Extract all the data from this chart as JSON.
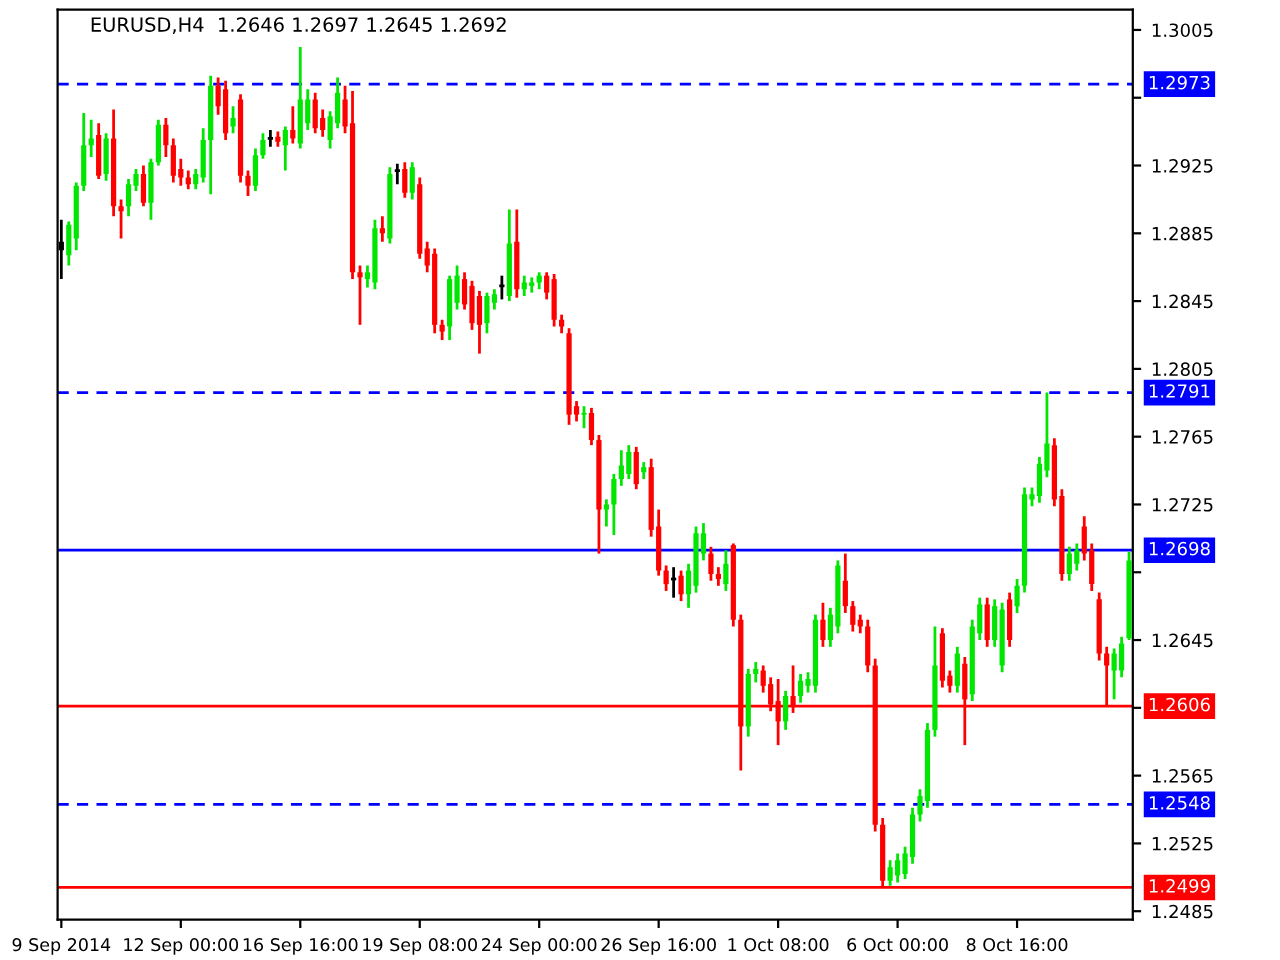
{
  "chart_data": {
    "type": "candlestick",
    "title": "EURUSD,H4  1.2646 1.2697 1.2645 1.2692",
    "categories": [
      "9 Sep 2014",
      null,
      null,
      null,
      null,
      null,
      null,
      null,
      null,
      null,
      null,
      null,
      null,
      null,
      null,
      null,
      "12 Sep 00:00",
      null,
      null,
      null,
      null,
      null,
      null,
      null,
      null,
      null,
      null,
      null,
      null,
      null,
      null,
      null,
      "16 Sep 16:00",
      null,
      null,
      null,
      null,
      null,
      null,
      null,
      null,
      null,
      null,
      null,
      null,
      null,
      null,
      null,
      "19 Sep 08:00",
      null,
      null,
      null,
      null,
      null,
      null,
      null,
      null,
      null,
      null,
      null,
      null,
      null,
      null,
      null,
      "24 Sep 00:00",
      null,
      null,
      null,
      null,
      null,
      null,
      null,
      null,
      null,
      null,
      null,
      null,
      null,
      null,
      null,
      "26 Sep 16:00",
      null,
      null,
      null,
      null,
      null,
      null,
      null,
      null,
      null,
      null,
      null,
      null,
      null,
      null,
      null,
      "1 Oct 08:00",
      null,
      null,
      null,
      null,
      null,
      null,
      null,
      null,
      null,
      null,
      null,
      null,
      null,
      null,
      null,
      "6 Oct 00:00",
      null,
      null,
      null,
      null,
      null,
      null,
      null,
      null,
      null,
      null,
      null,
      null,
      null,
      null,
      null,
      "8 Oct 16:00",
      null,
      null,
      null,
      null,
      null,
      null,
      null,
      null,
      null,
      null,
      null,
      null,
      null,
      null,
      null
    ],
    "ohlc": [
      [
        1.288,
        1.2893,
        1.2858,
        1.2875
      ],
      [
        1.2872,
        1.2892,
        1.2866,
        1.289
      ],
      [
        1.2882,
        1.2915,
        1.2875,
        1.2913
      ],
      [
        1.2913,
        1.2956,
        1.291,
        1.2937
      ],
      [
        1.2937,
        1.2952,
        1.293,
        1.2941
      ],
      [
        1.2943,
        1.295,
        1.2917,
        1.2919
      ],
      [
        1.292,
        1.2944,
        1.2916,
        1.2941
      ],
      [
        1.2941,
        1.2958,
        1.2895,
        1.2901
      ],
      [
        1.2901,
        1.2905,
        1.2882,
        1.2898
      ],
      [
        1.2901,
        1.2917,
        1.2895,
        1.2914
      ],
      [
        1.2913,
        1.2923,
        1.291,
        1.292
      ],
      [
        1.292,
        1.2925,
        1.2901,
        1.2903
      ],
      [
        1.2903,
        1.2929,
        1.2893,
        1.2927
      ],
      [
        1.2927,
        1.2952,
        1.2925,
        1.2949
      ],
      [
        1.2949,
        1.2953,
        1.293,
        1.2937
      ],
      [
        1.2937,
        1.2941,
        1.2915,
        1.2919
      ],
      [
        1.2923,
        1.2929,
        1.2913,
        1.2918
      ],
      [
        1.2918,
        1.2922,
        1.2911,
        1.2914
      ],
      [
        1.2914,
        1.2923,
        1.2911,
        1.292
      ],
      [
        1.2918,
        1.2947,
        1.2915,
        1.294
      ],
      [
        1.294,
        1.2978,
        1.2908,
        1.2972
      ],
      [
        1.2972,
        1.2977,
        1.2955,
        1.296
      ],
      [
        1.297,
        1.2975,
        1.294,
        1.2944
      ],
      [
        1.2948,
        1.296,
        1.2944,
        1.2953
      ],
      [
        1.2964,
        1.2967,
        1.2915,
        1.2919
      ],
      [
        1.2919,
        1.2922,
        1.2907,
        1.2913
      ],
      [
        1.2913,
        1.2935,
        1.291,
        1.2931
      ],
      [
        1.2931,
        1.2944,
        1.2929,
        1.294
      ],
      [
        1.2941,
        1.2946,
        1.2936,
        1.2941
      ],
      [
        1.2942,
        1.2945,
        1.2936,
        1.2939
      ],
      [
        1.2937,
        1.2948,
        1.2922,
        1.2946
      ],
      [
        1.2946,
        1.296,
        1.2938,
        1.2941
      ],
      [
        1.2938,
        1.2995,
        1.2935,
        1.2964
      ],
      [
        1.295,
        1.297,
        1.2946,
        1.2964
      ],
      [
        1.2964,
        1.2968,
        1.2944,
        1.2947
      ],
      [
        1.2953,
        1.2958,
        1.2942,
        1.2946
      ],
      [
        1.294,
        1.2957,
        1.2935,
        1.2954
      ],
      [
        1.295,
        1.2977,
        1.2947,
        1.2968
      ],
      [
        1.2964,
        1.2972,
        1.2944,
        1.2948
      ],
      [
        1.295,
        1.2969,
        1.2858,
        1.2862
      ],
      [
        1.2862,
        1.2866,
        1.2831,
        1.2859
      ],
      [
        1.2858,
        1.2866,
        1.2853,
        1.2862
      ],
      [
        1.2856,
        1.2893,
        1.2852,
        1.2888
      ],
      [
        1.2888,
        1.2895,
        1.288,
        1.2885
      ],
      [
        1.2882,
        1.2924,
        1.2879,
        1.292
      ],
      [
        1.2922,
        1.2926,
        1.2914,
        1.2922
      ],
      [
        1.2923,
        1.2927,
        1.2906,
        1.2909
      ],
      [
        1.2909,
        1.2927,
        1.2905,
        1.2924
      ],
      [
        1.2914,
        1.2918,
        1.287,
        1.2873
      ],
      [
        1.2876,
        1.288,
        1.2862,
        1.2866
      ],
      [
        1.2873,
        1.2876,
        1.2826,
        1.2831
      ],
      [
        1.2831,
        1.2834,
        1.2822,
        1.2827
      ],
      [
        1.283,
        1.286,
        1.2822,
        1.2858
      ],
      [
        1.2844,
        1.2866,
        1.284,
        1.286
      ],
      [
        1.2858,
        1.2862,
        1.284,
        1.2843
      ],
      [
        1.2854,
        1.2857,
        1.2828,
        1.2832
      ],
      [
        1.2848,
        1.2851,
        1.2814,
        1.2831
      ],
      [
        1.2832,
        1.285,
        1.2826,
        1.2848
      ],
      [
        1.2844,
        1.2852,
        1.284,
        1.2849
      ],
      [
        1.2854,
        1.286,
        1.2846,
        1.2854
      ],
      [
        1.2848,
        1.2899,
        1.2845,
        1.2879
      ],
      [
        1.288,
        1.2899,
        1.2847,
        1.2852
      ],
      [
        1.2852,
        1.286,
        1.2848,
        1.2856
      ],
      [
        1.2854,
        1.2859,
        1.285,
        1.2856
      ],
      [
        1.2856,
        1.2862,
        1.2852,
        1.286
      ],
      [
        1.286,
        1.2862,
        1.2846,
        1.285
      ],
      [
        1.2858,
        1.2861,
        1.283,
        1.2834
      ],
      [
        1.2834,
        1.2837,
        1.2826,
        1.283
      ],
      [
        1.2826,
        1.2829,
        1.2772,
        1.2778
      ],
      [
        1.2783,
        1.2786,
        1.2774,
        1.2778
      ],
      [
        1.2778,
        1.2783,
        1.277,
        1.2779
      ],
      [
        1.2779,
        1.2782,
        1.276,
        1.2763
      ],
      [
        1.2763,
        1.2766,
        1.2696,
        1.2722
      ],
      [
        1.2722,
        1.2728,
        1.2712,
        1.2725
      ],
      [
        1.2725,
        1.2743,
        1.2707,
        1.274
      ],
      [
        1.274,
        1.2757,
        1.2736,
        1.2748
      ],
      [
        1.2743,
        1.276,
        1.274,
        1.2756
      ],
      [
        1.2756,
        1.2759,
        1.2734,
        1.2737
      ],
      [
        1.2744,
        1.275,
        1.274,
        1.2747
      ],
      [
        1.2747,
        1.2752,
        1.2706,
        1.271
      ],
      [
        1.2712,
        1.2722,
        1.2683,
        1.2686
      ],
      [
        1.2686,
        1.2689,
        1.2674,
        1.2678
      ],
      [
        1.2681,
        1.2688,
        1.267,
        1.2681
      ],
      [
        1.2683,
        1.2686,
        1.2668,
        1.2672
      ],
      [
        1.2672,
        1.269,
        1.2664,
        1.2686
      ],
      [
        1.2677,
        1.2712,
        1.2673,
        1.2708
      ],
      [
        1.2696,
        1.2714,
        1.2692,
        1.2708
      ],
      [
        1.2696,
        1.27,
        1.268,
        1.2684
      ],
      [
        1.2684,
        1.2688,
        1.2677,
        1.2681
      ],
      [
        1.2678,
        1.2698,
        1.2674,
        1.269
      ],
      [
        1.2701,
        1.2702,
        1.2653,
        1.2657
      ],
      [
        1.2657,
        1.266,
        1.2568,
        1.2594
      ],
      [
        1.2594,
        1.2628,
        1.2588,
        1.2625
      ],
      [
        1.2625,
        1.2632,
        1.262,
        1.2628
      ],
      [
        1.2627,
        1.263,
        1.2614,
        1.2618
      ],
      [
        1.2619,
        1.2623,
        1.2603,
        1.2607
      ],
      [
        1.2609,
        1.2622,
        1.2583,
        1.2597
      ],
      [
        1.2597,
        1.2615,
        1.2592,
        1.2612
      ],
      [
        1.2612,
        1.263,
        1.2602,
        1.2606
      ],
      [
        1.2612,
        1.2625,
        1.2608,
        1.2621
      ],
      [
        1.2618,
        1.2626,
        1.2614,
        1.2622
      ],
      [
        1.2618,
        1.266,
        1.2614,
        1.2657
      ],
      [
        1.2657,
        1.2667,
        1.2641,
        1.2645
      ],
      [
        1.2645,
        1.2664,
        1.2641,
        1.266
      ],
      [
        1.2653,
        1.2692,
        1.2649,
        1.2689
      ],
      [
        1.268,
        1.2696,
        1.2661,
        1.2665
      ],
      [
        1.2665,
        1.2668,
        1.265,
        1.2654
      ],
      [
        1.2657,
        1.266,
        1.2649,
        1.2653
      ],
      [
        1.2653,
        1.2657,
        1.2626,
        1.263
      ],
      [
        1.263,
        1.2634,
        1.2532,
        1.2536
      ],
      [
        1.2536,
        1.254,
        1.2499,
        1.2503
      ],
      [
        1.2503,
        1.2515,
        1.25,
        1.2511
      ],
      [
        1.2506,
        1.2519,
        1.2502,
        1.2515
      ],
      [
        1.2507,
        1.2523,
        1.2504,
        1.2519
      ],
      [
        1.2517,
        1.2546,
        1.2513,
        1.2542
      ],
      [
        1.2542,
        1.2557,
        1.2538,
        1.2553
      ],
      [
        1.255,
        1.2596,
        1.2546,
        1.2592
      ],
      [
        1.2592,
        1.2653,
        1.2588,
        1.263
      ],
      [
        1.2649,
        1.2652,
        1.2617,
        1.2621
      ],
      [
        1.2624,
        1.2627,
        1.2614,
        1.2618
      ],
      [
        1.2618,
        1.2641,
        1.2614,
        1.2637
      ],
      [
        1.2631,
        1.2635,
        1.2583,
        1.261
      ],
      [
        1.2613,
        1.2657,
        1.2609,
        1.2653
      ],
      [
        1.2649,
        1.267,
        1.2645,
        1.2666
      ],
      [
        1.2666,
        1.267,
        1.2641,
        1.2645
      ],
      [
        1.2645,
        1.2669,
        1.2641,
        1.2665
      ],
      [
        1.263,
        1.2667,
        1.2626,
        1.2663
      ],
      [
        1.2669,
        1.2673,
        1.2641,
        1.2645
      ],
      [
        1.2665,
        1.2681,
        1.2661,
        1.2677
      ],
      [
        1.2677,
        1.2735,
        1.2673,
        1.2731
      ],
      [
        1.2728,
        1.2735,
        1.2724,
        1.2731
      ],
      [
        1.273,
        1.2753,
        1.2726,
        1.2749
      ],
      [
        1.2745,
        1.2791,
        1.2741,
        1.2761
      ],
      [
        1.276,
        1.2764,
        1.2724,
        1.2728
      ],
      [
        1.273,
        1.2734,
        1.268,
        1.2684
      ],
      [
        1.2684,
        1.27,
        1.268,
        1.2696
      ],
      [
        1.269,
        1.2702,
        1.2686,
        1.2698
      ],
      [
        1.2712,
        1.2718,
        1.2692,
        1.2696
      ],
      [
        1.2698,
        1.2702,
        1.2674,
        1.2678
      ],
      [
        1.2669,
        1.2673,
        1.2633,
        1.2637
      ],
      [
        1.2637,
        1.2641,
        1.2606,
        1.263
      ],
      [
        1.2627,
        1.264,
        1.261,
        1.2637
      ],
      [
        1.2627,
        1.2647,
        1.2623,
        1.2643
      ],
      [
        1.2646,
        1.2697,
        1.2645,
        1.2692
      ]
    ],
    "colors": [
      "#000000",
      "#00e600",
      "#00e600",
      "#00e600",
      "#00e600",
      "#ff0000",
      "#00e600",
      "#ff0000",
      "#ff0000",
      "#00e600",
      "#00e600",
      "#ff0000",
      "#00e600",
      "#00e600",
      "#ff0000",
      "#ff0000",
      "#ff0000",
      "#ff0000",
      "#00e600",
      "#00e600",
      "#00e600",
      "#ff0000",
      "#ff0000",
      "#00e600",
      "#ff0000",
      "#ff0000",
      "#00e600",
      "#00e600",
      "#000000",
      "#ff0000",
      "#00e600",
      "#ff0000",
      "#00e600",
      "#00e600",
      "#ff0000",
      "#ff0000",
      "#00e600",
      "#00e600",
      "#ff0000",
      "#ff0000",
      "#ff0000",
      "#00e600",
      "#00e600",
      "#ff0000",
      "#00e600",
      "#000000",
      "#ff0000",
      "#00e600",
      "#ff0000",
      "#ff0000",
      "#ff0000",
      "#ff0000",
      "#00e600",
      "#00e600",
      "#ff0000",
      "#ff0000",
      "#ff0000",
      "#00e600",
      "#00e600",
      "#000000",
      "#00e600",
      "#ff0000",
      "#00e600",
      "#00e600",
      "#00e600",
      "#ff0000",
      "#ff0000",
      "#ff0000",
      "#ff0000",
      "#ff0000",
      "#00e600",
      "#ff0000",
      "#ff0000",
      "#00e600",
      "#00e600",
      "#00e600",
      "#00e600",
      "#ff0000",
      "#00e600",
      "#ff0000",
      "#ff0000",
      "#ff0000",
      "#000000",
      "#ff0000",
      "#00e600",
      "#00e600",
      "#00e600",
      "#ff0000",
      "#ff0000",
      "#00e600",
      "#ff0000",
      "#ff0000",
      "#00e600",
      "#00e600",
      "#ff0000",
      "#ff0000",
      "#ff0000",
      "#00e600",
      "#ff0000",
      "#00e600",
      "#00e600",
      "#00e600",
      "#ff0000",
      "#00e600",
      "#00e600",
      "#ff0000",
      "#ff0000",
      "#ff0000",
      "#ff0000",
      "#ff0000",
      "#ff0000",
      "#00e600",
      "#00e600",
      "#00e600",
      "#00e600",
      "#00e600",
      "#00e600",
      "#00e600",
      "#ff0000",
      "#ff0000",
      "#00e600",
      "#ff0000",
      "#00e600",
      "#00e600",
      "#ff0000",
      "#00e600",
      "#00e600",
      "#ff0000",
      "#00e600",
      "#00e600",
      "#00e600",
      "#00e600",
      "#00e600",
      "#ff0000",
      "#ff0000",
      "#00e600",
      "#00e600",
      "#ff0000",
      "#ff0000",
      "#ff0000",
      "#ff0000",
      "#00e600",
      "#00e600",
      "#00e600"
    ],
    "ylim": [
      1.248,
      1.3017
    ],
    "yticks": [
      1.2485,
      1.2525,
      1.2565,
      {
        "value": 1.2605,
        "label": null
      },
      1.2645,
      {
        "value": 1.2685,
        "label": null
      },
      1.2725,
      1.2765,
      1.2805,
      1.2845,
      1.2885,
      1.2925,
      {
        "value": 1.2965,
        "label": null
      },
      1.3005
    ],
    "ref_lines": [
      {
        "axis": "y",
        "value": 1.2973,
        "label": "1.2973",
        "color": "#0000ff",
        "line_style": "dashed"
      },
      {
        "axis": "y",
        "value": 1.2791,
        "label": "1.2791",
        "color": "#0000ff",
        "line_style": "dashed"
      },
      {
        "axis": "y",
        "value": 1.2698,
        "label": "1.2698",
        "color": "#0000ff",
        "line_style": "solid"
      },
      {
        "axis": "y",
        "value": 1.2606,
        "label": "1.2606",
        "color": "#ff0000",
        "line_style": "solid"
      },
      {
        "axis": "y",
        "value": 1.2548,
        "label": "1.2548",
        "color": "#0000ff",
        "line_style": "dashed"
      },
      {
        "axis": "y",
        "value": 1.2499,
        "label": "1.2499",
        "color": "#ff0000",
        "line_style": "solid"
      }
    ],
    "grid": false,
    "legend": false
  }
}
